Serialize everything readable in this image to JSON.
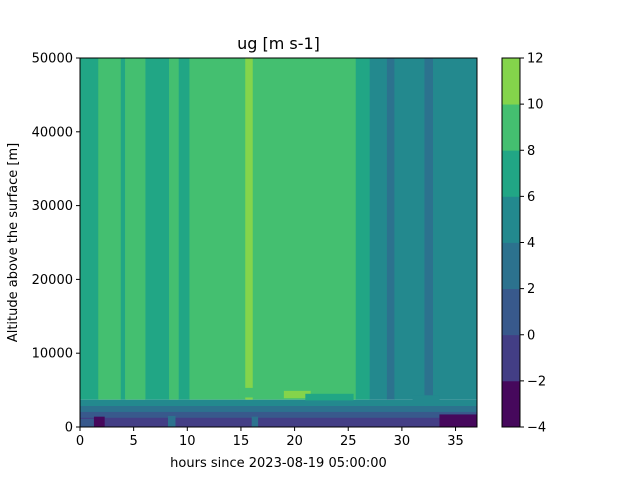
{
  "chart_data": {
    "type": "heatmap",
    "subtype": "filled-contour",
    "title": "ug [m s-1]",
    "xlabel": "hours since 2023-08-19 05:00:00",
    "ylabel": "Altitude above the surface [m]",
    "xlim": [
      0,
      37
    ],
    "ylim": [
      0,
      50000
    ],
    "xticks": [
      0,
      5,
      10,
      15,
      20,
      25,
      30,
      35
    ],
    "yticks": [
      0,
      10000,
      20000,
      30000,
      40000,
      50000
    ],
    "grid": false,
    "colorbar": {
      "levels": [
        -4,
        -2,
        0,
        2,
        4,
        6,
        8,
        10,
        12
      ],
      "ticks": [
        -4,
        -2,
        0,
        2,
        4,
        6,
        8,
        10,
        12
      ],
      "colors": [
        "#46085c",
        "#433e85",
        "#38598c",
        "#2c728e",
        "#23898e",
        "#21a685",
        "#44bf70",
        "#84d44b",
        "#d2e21b"
      ]
    },
    "upper_columns": [
      {
        "x0": 0.0,
        "x1": 1.7,
        "value": 7
      },
      {
        "x0": 1.7,
        "x1": 3.8,
        "value": 9
      },
      {
        "x0": 3.8,
        "x1": 4.2,
        "value": 7
      },
      {
        "x0": 4.2,
        "x1": 6.1,
        "value": 9
      },
      {
        "x0": 6.1,
        "x1": 8.3,
        "value": 7
      },
      {
        "x0": 8.3,
        "x1": 9.2,
        "value": 9
      },
      {
        "x0": 9.2,
        "x1": 10.2,
        "value": 7
      },
      {
        "x0": 10.2,
        "x1": 15.4,
        "value": 9
      },
      {
        "x0": 15.4,
        "x1": 16.1,
        "value": 11
      },
      {
        "x0": 16.1,
        "x1": 25.7,
        "value": 9
      },
      {
        "x0": 25.7,
        "x1": 27.0,
        "value": 7
      },
      {
        "x0": 27.0,
        "x1": 28.6,
        "value": 5
      },
      {
        "x0": 28.6,
        "x1": 29.3,
        "value": 3
      },
      {
        "x0": 29.3,
        "x1": 32.1,
        "value": 5
      },
      {
        "x0": 32.1,
        "x1": 32.9,
        "value": 3
      },
      {
        "x0": 32.9,
        "x1": 37.0,
        "value": 5
      }
    ],
    "lower_layers": [
      {
        "y0": 0,
        "y1": 1300,
        "value": -1
      },
      {
        "y0": 1300,
        "y1": 2100,
        "value": 1
      },
      {
        "y0": 2100,
        "y1": 2900,
        "value": 3
      },
      {
        "y0": 2900,
        "y1": 3700,
        "value": 5
      }
    ],
    "patches": [
      {
        "x0": 0.0,
        "x1": 1.3,
        "y0": 0,
        "y1": 1100,
        "value": 1
      },
      {
        "x0": 1.3,
        "x1": 2.3,
        "y0": 0,
        "y1": 1400,
        "value": -3
      },
      {
        "x0": 8.2,
        "x1": 8.9,
        "y0": 0,
        "y1": 1500,
        "value": 3
      },
      {
        "x0": 16.0,
        "x1": 16.6,
        "y0": 0,
        "y1": 1400,
        "value": 3
      },
      {
        "x0": 33.5,
        "x1": 37.0,
        "y0": 0,
        "y1": 1700,
        "value": -3
      },
      {
        "x0": 19.0,
        "x1": 21.5,
        "y0": 3900,
        "y1": 4900,
        "value": 11
      },
      {
        "x0": 14.8,
        "x1": 16.4,
        "y0": 4000,
        "y1": 5300,
        "value": 9
      },
      {
        "x0": 21.0,
        "x1": 25.5,
        "y0": 3600,
        "y1": 4500,
        "value": 7
      },
      {
        "x0": 31.0,
        "x1": 33.5,
        "y0": 3500,
        "y1": 4300,
        "value": 5
      }
    ]
  }
}
